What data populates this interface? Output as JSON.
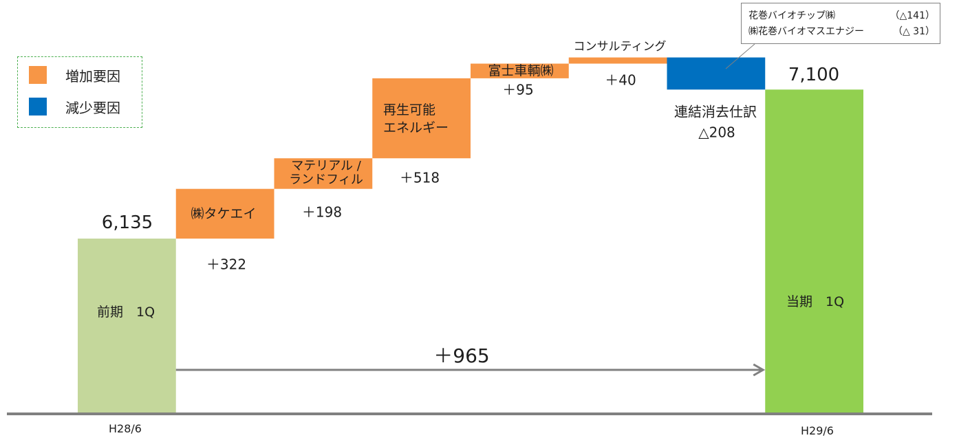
{
  "chart_data": {
    "type": "bar",
    "waterfall": true,
    "categories": [
      "前期　1Q",
      "㈱タケエイ",
      "マテリアル /\nランドフィル",
      "再生可能\nエネルギー",
      "富士車輌㈱",
      "コンサルティング",
      "連結消去仕訳",
      "当期　1Q"
    ],
    "values": [
      6135,
      322,
      198,
      518,
      95,
      40,
      -208,
      7100
    ],
    "value_labels": [
      "6,135",
      "＋322",
      "＋198",
      "＋518",
      "＋95",
      "＋40",
      "△208",
      "7,100"
    ],
    "period_labels": [
      "H28/6",
      "H29/6"
    ],
    "ylim": [
      5000,
      7680
    ],
    "grid": false,
    "total_change": {
      "value": 965,
      "label": "＋965"
    },
    "legend": {
      "position": "top-left",
      "items": [
        {
          "label": "増加要因",
          "color": "#f79646"
        },
        {
          "label": "減少要因",
          "color": "#0070c0"
        }
      ]
    },
    "callout": {
      "lines": [
        {
          "name": "花巻バイオチップ㈱",
          "value": "（△141）"
        },
        {
          "name": "㈱花巻バイオマスエナジー",
          "value": "（△ 31）"
        }
      ]
    },
    "colors": {
      "increase": "#f79646",
      "decrease": "#0070c0",
      "start_total": "#c4d79b",
      "end_total": "#92d050",
      "axis": "#808080",
      "arrow": "#808080",
      "legend_border": "#4caf50",
      "callout_border": "#808080"
    }
  }
}
